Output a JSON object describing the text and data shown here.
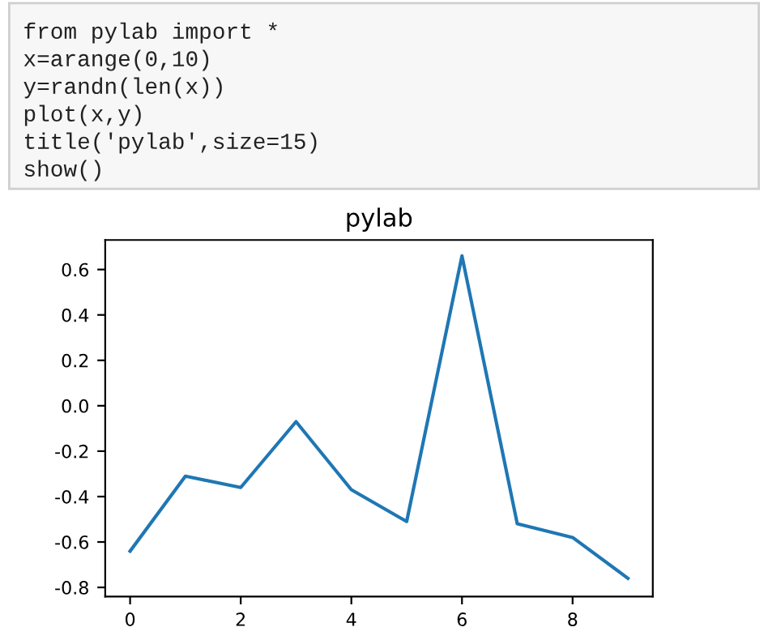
{
  "chart_data": {
    "type": "line",
    "title": "pylab",
    "annotations": [
      "from pylab import *",
      "x=arange(0,10)",
      "y=randn(len(x))",
      "plot(x,y)",
      "title('pylab',size=15)",
      "show()"
    ],
    "x": [
      0,
      1,
      2,
      3,
      4,
      5,
      6,
      7,
      8,
      9
    ],
    "series": [
      {
        "color": "#1f77b4",
        "values": [
          -0.64,
          -0.31,
          -0.36,
          -0.07,
          -0.37,
          -0.51,
          0.66,
          -0.52,
          -0.58,
          -0.76
        ]
      }
    ],
    "xlim": [
      -0.45,
      9.45
    ],
    "ylim": [
      -0.84,
      0.73
    ],
    "xticks": [
      0,
      2,
      4,
      6,
      8
    ],
    "yticks": [
      -0.8,
      -0.6,
      -0.4,
      -0.2,
      {
        "value": 0,
        "label": "0.0"
      },
      0.2,
      0.4,
      0.6
    ],
    "grid": false,
    "legend": false
  }
}
